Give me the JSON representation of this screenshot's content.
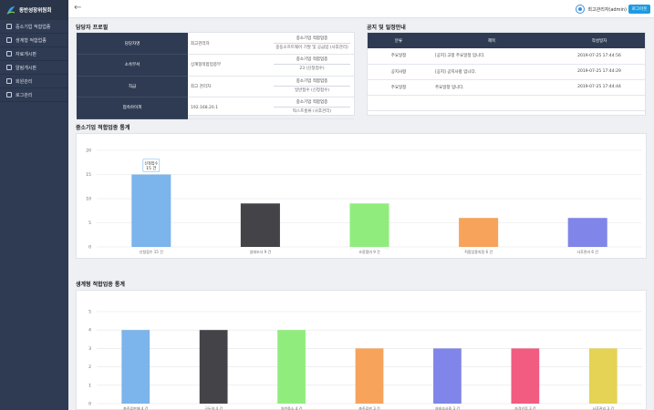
{
  "sidebar": {
    "logo_text": "동반성장위원회",
    "items": [
      {
        "label": "중소기업 적합업종",
        "icon": "document-icon"
      },
      {
        "label": "생계형 적합업종",
        "icon": "document-icon"
      },
      {
        "label": "자료게시판",
        "icon": "folder-icon"
      },
      {
        "label": "알림게시판",
        "icon": "bell-icon"
      },
      {
        "label": "회원관리",
        "icon": "user-icon"
      },
      {
        "label": "로그관리",
        "icon": "log-icon"
      }
    ]
  },
  "header": {
    "user_name": "최고관리자(admin)",
    "logout_label": "로그아웃"
  },
  "profile": {
    "title": "담당자 프로필",
    "rows": [
      {
        "key": "담당자명",
        "value": "최고관리자",
        "tag1": "중소기업 적합업종",
        "tag2": "중동소프트웨어 기발 및 공급업 (사후관리)"
      },
      {
        "key": "소속부서",
        "value": "상계형적합업종부",
        "tag1": "중소기업 적합업종",
        "tag2": "23 (신청접수)"
      },
      {
        "key": "직급",
        "value": "최고 관리자",
        "tag1": "중소기업 적합업종",
        "tag2": "일반접수 (신청접수)"
      },
      {
        "key": "접속아이피",
        "value": "192.168.20.1",
        "tag1": "중소기업 적합업종",
        "tag2": "떡스프롬류 (사후관리)"
      }
    ]
  },
  "notice": {
    "title": "공지 및 일정안내",
    "columns": [
      "분류",
      "제목",
      "작성일자"
    ],
    "rows": [
      {
        "category": "주요일정",
        "subject": "[공지] 고정 주요일정 입니다.",
        "date": "2019-07-25 17:44:56"
      },
      {
        "category": "공지사항",
        "subject": "[공지] 공지사항 입니다.",
        "date": "2019-07-25 17:44:29"
      },
      {
        "category": "주요일정",
        "subject": "주요일정 입니다.",
        "date": "2019-07-25 17:44:44"
      }
    ]
  },
  "chart1_title": "중소기업 적합업종 통계",
  "chart2_title": "생계형 적합업종 통계",
  "chart_data": [
    {
      "type": "bar",
      "categories": [
        "신청접수 15 건",
        "실태조사 9 건",
        "조정협의 9 건",
        "적합업종지정 6 건",
        "사후관리 6 건"
      ],
      "values": [
        15,
        9,
        9,
        6,
        6
      ],
      "colors": [
        "#7cb4ec",
        "#434348",
        "#90ed7d",
        "#f7a35c",
        "#8085e9"
      ],
      "ylim": [
        0,
        20
      ],
      "yticks": [
        0,
        5,
        10,
        15,
        20
      ],
      "tooltip": {
        "index": 0,
        "line1": "신청접수",
        "line2": "15 건"
      }
    },
    {
      "type": "bar",
      "categories": [
        "총주류판매 4 건",
        "구두약 4 건",
        "일반중소 4 건",
        "총주류판 3 건",
        "실태조사중 3 건",
        "자격인증 3 건",
        "사후관리 3 건"
      ],
      "values": [
        4,
        4,
        4,
        3,
        3,
        3,
        3
      ],
      "colors": [
        "#7cb4ec",
        "#434348",
        "#90ed7d",
        "#f7a35c",
        "#8085e9",
        "#f15c80",
        "#e4d354"
      ],
      "ylim": [
        0,
        5
      ],
      "yticks": [
        0,
        1,
        2,
        3,
        4,
        5
      ]
    }
  ]
}
